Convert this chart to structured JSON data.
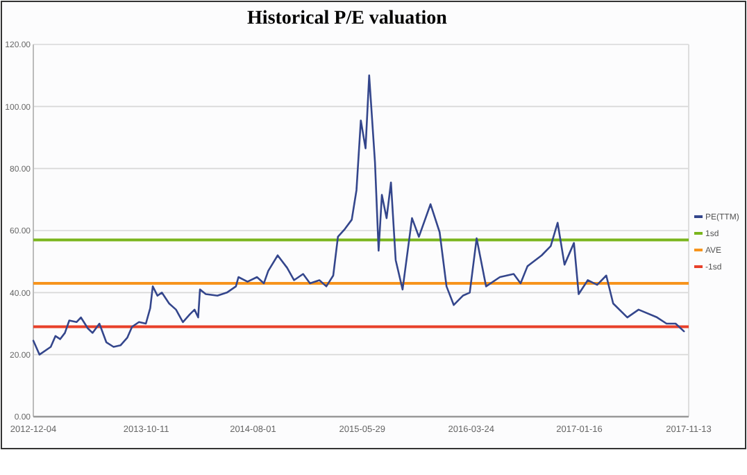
{
  "chart_data": {
    "type": "line",
    "title": "Historical P/E valuation",
    "x": [
      "2012-12-04",
      "2012-12-21",
      "2013-01-21",
      "2013-02-03",
      "2013-02-16",
      "2013-03-01",
      "2013-03-13",
      "2013-04-02",
      "2013-04-14",
      "2013-05-03",
      "2013-05-16",
      "2013-06-04",
      "2013-06-23",
      "2013-07-13",
      "2013-08-01",
      "2013-08-20",
      "2013-09-02",
      "2013-09-21",
      "2013-10-10",
      "2013-10-22",
      "2013-10-29",
      "2013-11-11",
      "2013-11-23",
      "2013-12-13",
      "2014-01-01",
      "2014-01-20",
      "2014-02-08",
      "2014-02-21",
      "2014-03-03",
      "2014-03-08",
      "2014-03-24",
      "2014-04-25",
      "2014-05-21",
      "2014-06-15",
      "2014-06-22",
      "2014-07-17",
      "2014-08-12",
      "2014-08-31",
      "2014-09-12",
      "2014-10-08",
      "2014-11-03",
      "2014-11-22",
      "2014-12-17",
      "2015-01-05",
      "2015-01-31",
      "2015-02-19",
      "2015-03-10",
      "2015-03-23",
      "2015-04-11",
      "2015-04-30",
      "2015-05-13",
      "2015-05-25",
      "2015-06-07",
      "2015-06-17",
      "2015-07-03",
      "2015-07-13",
      "2015-07-22",
      "2015-08-04",
      "2015-08-16",
      "2015-08-29",
      "2015-09-17",
      "2015-10-13",
      "2015-11-01",
      "2015-12-03",
      "2015-12-28",
      "2016-01-16",
      "2016-02-05",
      "2016-03-01",
      "2016-03-20",
      "2016-04-08",
      "2016-05-04",
      "2016-06-11",
      "2016-07-19",
      "2016-08-07",
      "2016-08-26",
      "2016-10-04",
      "2016-10-29",
      "2016-11-17",
      "2016-12-06",
      "2017-01-01",
      "2017-01-14",
      "2017-02-08",
      "2017-03-06",
      "2017-03-31",
      "2017-04-19",
      "2017-05-28",
      "2017-06-28",
      "2017-08-18",
      "2017-09-13",
      "2017-10-08",
      "2017-10-31"
    ],
    "series": [
      {
        "name": "PE(TTM)",
        "color": "#34468c",
        "values": [
          24.5,
          20,
          22.5,
          26,
          25,
          27,
          31,
          30.5,
          32,
          28.5,
          27,
          30,
          24,
          22.5,
          23,
          25.5,
          29,
          30.5,
          30,
          35,
          42,
          39,
          40,
          36.5,
          34.5,
          30.5,
          33,
          34.5,
          32,
          41,
          39.5,
          39,
          40,
          42,
          45,
          43.5,
          45,
          43,
          47,
          52,
          48,
          44,
          46,
          43,
          44,
          42,
          45.5,
          58,
          60.5,
          63.5,
          73,
          95.5,
          86.5,
          110,
          82,
          53.5,
          71.5,
          64,
          75.5,
          50.5,
          41,
          64,
          58,
          68.5,
          59.5,
          42,
          36,
          39,
          40,
          57.5,
          42,
          45,
          46,
          43,
          48.5,
          52,
          55,
          62.5,
          49,
          56,
          39.5,
          44,
          42.5,
          45.5,
          36.5,
          32,
          34.5,
          32,
          30,
          30,
          27.5
        ]
      }
    ],
    "xlim": [
      "2012-12-04",
      "2017-11-13"
    ],
    "xticks": [
      "2012-12-04",
      "2013-10-11",
      "2014-08-01",
      "2015-05-29",
      "2016-03-24",
      "2017-01-16",
      "2017-11-13"
    ],
    "ylim": [
      0,
      120
    ],
    "yticks": [
      {
        "value": 0,
        "label": "0.00"
      },
      {
        "value": 20,
        "label": "20.00"
      },
      {
        "value": 40,
        "label": "40.00"
      },
      {
        "value": 60,
        "label": "60.00"
      },
      {
        "value": 80,
        "label": "80.00"
      },
      {
        "value": 100,
        "label": "100.00"
      },
      {
        "value": 120,
        "label": "120.00"
      }
    ],
    "ref_lines": [
      {
        "axis": "y",
        "value": 57,
        "label": "1sd",
        "color": "#7ab51d"
      },
      {
        "axis": "y",
        "value": 43,
        "label": "AVE",
        "color": "#f7941d"
      },
      {
        "axis": "y",
        "value": 29,
        "label": "-1sd",
        "color": "#e8402a"
      }
    ],
    "grid": "y",
    "legend": "right",
    "marker": "none",
    "line_style": "solid"
  }
}
